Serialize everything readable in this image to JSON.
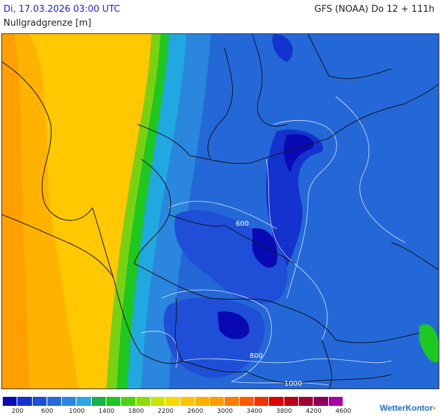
{
  "header": {
    "datetime": "Di, 17.03.2026 03:00 UTC",
    "model_run": "GFS (NOAA) Do 12 + 111h",
    "parameter": "Nullgradgrenze [m]"
  },
  "map": {
    "contour_labels": [
      "600",
      "800",
      "1000"
    ]
  },
  "legend": {
    "colors": [
      "#0a0ab4",
      "#1432cd",
      "#1e50d7",
      "#2869dc",
      "#2d87e1",
      "#32a5e6",
      "#14b446",
      "#1ec81e",
      "#50d214",
      "#8cdc0a",
      "#c8e600",
      "#ffd700",
      "#ffc300",
      "#ffaf00",
      "#ff9b00",
      "#ff7d00",
      "#ff5a00",
      "#f03200",
      "#dc0000",
      "#be0014",
      "#a00032",
      "#8c005a",
      "#aa00aa"
    ],
    "tick_labels": [
      "200",
      "600",
      "1000",
      "1400",
      "1800",
      "2200",
      "2600",
      "3000",
      "3400",
      "3800",
      "4200",
      "4600"
    ]
  },
  "branding": {
    "name": "WetterKontor"
  }
}
